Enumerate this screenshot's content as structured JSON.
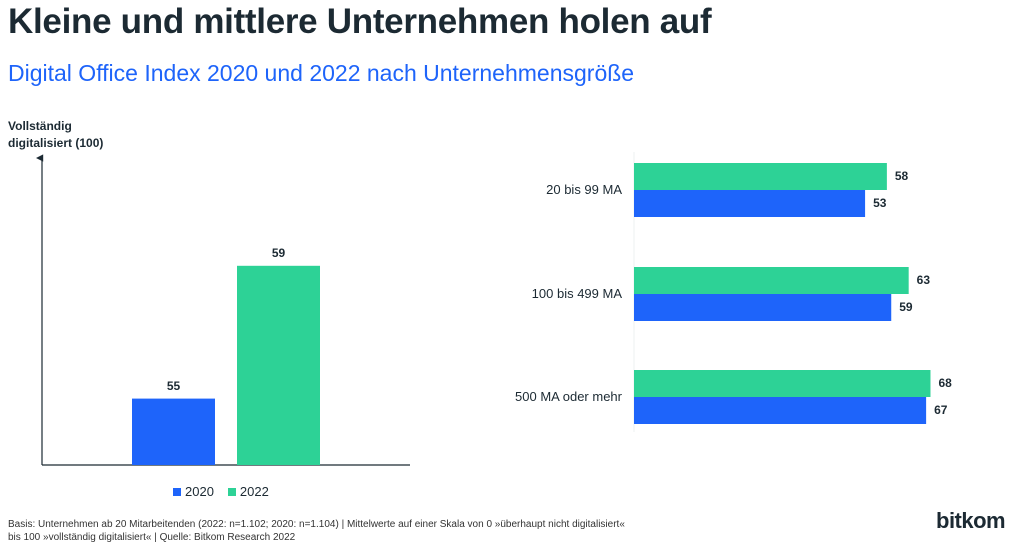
{
  "title": "Kleine und mittlere Unternehmen holen auf",
  "subtitle": "Digital Office Index 2020 und 2022 nach Unternehmensgröße",
  "footnote": {
    "line1": "Basis: Unternehmen ab 20 Mitarbeitenden (2022: n=1.102; 2020: n=1.104) | Mittelwerte auf einer Skala von 0 »überhaupt nicht digitalisiert«",
    "line2": "bis 100 »vollständig digitalisiert« | Quelle: Bitkom Research 2022"
  },
  "logo": "bitkom",
  "colors": {
    "2020": "#1e64fa",
    "2022": "#2dd296"
  },
  "chart_data": [
    {
      "type": "bar",
      "ylabel": [
        "Vollständig",
        "digitalisiert (100)"
      ],
      "categories": [
        "2020",
        "2022"
      ],
      "values": [
        55,
        59
      ],
      "legend": [
        "2020",
        "2022"
      ],
      "legend_position": "bottom",
      "grid": false
    },
    {
      "type": "bar",
      "orientation": "horizontal",
      "categories": [
        "20 bis 99 MA",
        "100 bis 499 MA",
        "500 MA oder mehr"
      ],
      "series": [
        {
          "name": "2022",
          "values": [
            58,
            63,
            68
          ]
        },
        {
          "name": "2020",
          "values": [
            53,
            59,
            67
          ]
        }
      ],
      "grid": false
    }
  ]
}
